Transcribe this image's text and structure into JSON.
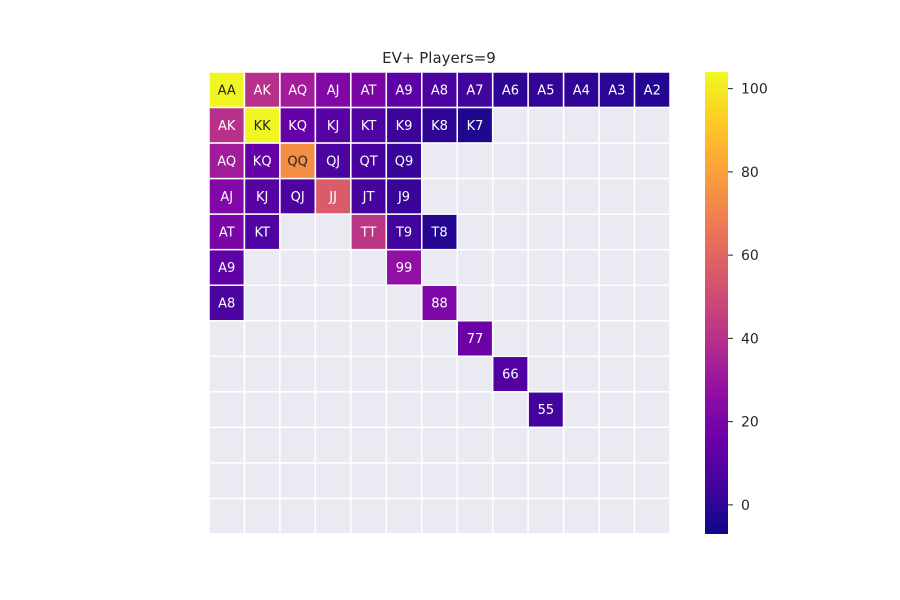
{
  "chart_data": {
    "type": "heatmap",
    "title": "EV+ Players=9",
    "xlabel": "",
    "ylabel": "",
    "colormap": "plasma",
    "empty_color": "#eaeaf2",
    "grid_line_color": "#ffffff",
    "vmin": -7,
    "vmax": 104,
    "colorbar_ticks": [
      0,
      20,
      40,
      60,
      80,
      100
    ],
    "rows": 13,
    "cols": 13,
    "cells": [
      {
        "row": 0,
        "col": 0,
        "label": "AA",
        "value": 103
      },
      {
        "row": 0,
        "col": 1,
        "label": "AK",
        "value": 40
      },
      {
        "row": 0,
        "col": 2,
        "label": "AQ",
        "value": 32
      },
      {
        "row": 0,
        "col": 3,
        "label": "AJ",
        "value": 22
      },
      {
        "row": 0,
        "col": 4,
        "label": "AT",
        "value": 20
      },
      {
        "row": 0,
        "col": 5,
        "label": "A9",
        "value": 12
      },
      {
        "row": 0,
        "col": 6,
        "label": "A8",
        "value": 7
      },
      {
        "row": 0,
        "col": 7,
        "label": "A7",
        "value": 4
      },
      {
        "row": 0,
        "col": 8,
        "label": "A6",
        "value": 0
      },
      {
        "row": 0,
        "col": 9,
        "label": "A5",
        "value": 1
      },
      {
        "row": 0,
        "col": 10,
        "label": "A4",
        "value": 0
      },
      {
        "row": 0,
        "col": 11,
        "label": "A3",
        "value": -1
      },
      {
        "row": 0,
        "col": 12,
        "label": "A2",
        "value": -2
      },
      {
        "row": 1,
        "col": 0,
        "label": "AK",
        "value": 40
      },
      {
        "row": 1,
        "col": 1,
        "label": "KK",
        "value": 103
      },
      {
        "row": 1,
        "col": 2,
        "label": "KQ",
        "value": 14
      },
      {
        "row": 1,
        "col": 3,
        "label": "KJ",
        "value": 10
      },
      {
        "row": 1,
        "col": 4,
        "label": "KT",
        "value": 8
      },
      {
        "row": 1,
        "col": 5,
        "label": "K9",
        "value": 3
      },
      {
        "row": 1,
        "col": 6,
        "label": "K8",
        "value": 0
      },
      {
        "row": 1,
        "col": 7,
        "label": "K7",
        "value": -3
      },
      {
        "row": 2,
        "col": 0,
        "label": "AQ",
        "value": 32
      },
      {
        "row": 2,
        "col": 1,
        "label": "KQ",
        "value": 14
      },
      {
        "row": 2,
        "col": 2,
        "label": "QQ",
        "value": 74
      },
      {
        "row": 2,
        "col": 3,
        "label": "QJ",
        "value": 7
      },
      {
        "row": 2,
        "col": 4,
        "label": "QT",
        "value": 6
      },
      {
        "row": 2,
        "col": 5,
        "label": "Q9",
        "value": 2
      },
      {
        "row": 3,
        "col": 0,
        "label": "AJ",
        "value": 22
      },
      {
        "row": 3,
        "col": 1,
        "label": "KJ",
        "value": 10
      },
      {
        "row": 3,
        "col": 2,
        "label": "QJ",
        "value": 7
      },
      {
        "row": 3,
        "col": 3,
        "label": "JJ",
        "value": 56
      },
      {
        "row": 3,
        "col": 4,
        "label": "JT",
        "value": 6
      },
      {
        "row": 3,
        "col": 5,
        "label": "J9",
        "value": 2
      },
      {
        "row": 4,
        "col": 0,
        "label": "AT",
        "value": 20
      },
      {
        "row": 4,
        "col": 1,
        "label": "KT",
        "value": 8
      },
      {
        "row": 4,
        "col": 4,
        "label": "TT",
        "value": 42
      },
      {
        "row": 4,
        "col": 5,
        "label": "T9",
        "value": 4
      },
      {
        "row": 4,
        "col": 6,
        "label": "T8",
        "value": -2
      },
      {
        "row": 5,
        "col": 0,
        "label": "A9",
        "value": 12
      },
      {
        "row": 5,
        "col": 5,
        "label": "99",
        "value": 27
      },
      {
        "row": 6,
        "col": 0,
        "label": "A8",
        "value": 7
      },
      {
        "row": 6,
        "col": 6,
        "label": "88",
        "value": 21
      },
      {
        "row": 7,
        "col": 7,
        "label": "77",
        "value": 16
      },
      {
        "row": 8,
        "col": 8,
        "label": "66",
        "value": 9
      },
      {
        "row": 9,
        "col": 9,
        "label": "55",
        "value": 5
      }
    ]
  }
}
